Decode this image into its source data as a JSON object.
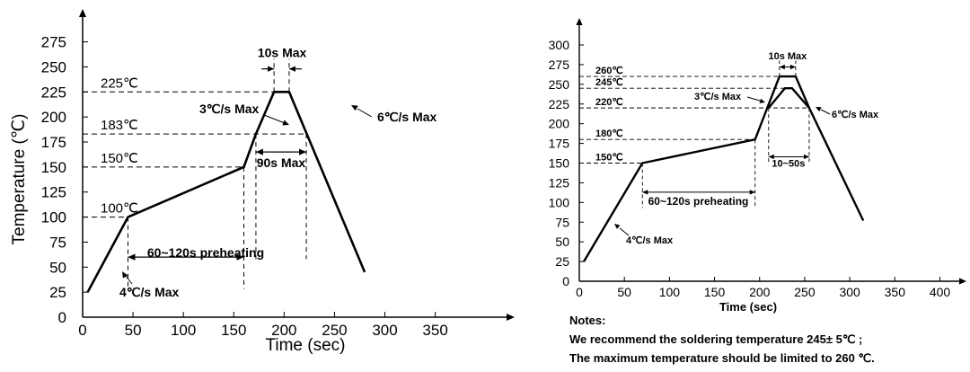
{
  "chart_data": [
    {
      "type": "line",
      "xlabel": "Time (sec)",
      "ylabel": "Temperature (℃)",
      "xlim": [
        0,
        370
      ],
      "ylim": [
        0,
        290
      ],
      "xticks": [
        "0",
        "50",
        "100",
        "150",
        "200",
        "250",
        "300",
        "350"
      ],
      "yticks": [
        "0",
        "25",
        "50",
        "75",
        "100",
        "125",
        "150",
        "175",
        "200",
        "225",
        "250",
        "275"
      ],
      "series": [
        {
          "x": [
            5,
            45,
            160,
            172,
            190,
            205,
            280
          ],
          "y": [
            25,
            100,
            150,
            183,
            225,
            225,
            45
          ]
        }
      ],
      "ref_lines": [
        {
          "y": 225,
          "label": "225℃"
        },
        {
          "y": 183,
          "label": "183℃"
        },
        {
          "y": 150,
          "label": "150℃"
        },
        {
          "y": 100,
          "label": "100℃"
        }
      ],
      "annotations": {
        "dwell": "10s Max",
        "ramp_up": "3℃/s Max",
        "cool_down": "6℃/s Max",
        "above_183": "90s Max",
        "preheat": "60~120s preheating",
        "initial_ramp": "4℃/s Max"
      }
    },
    {
      "type": "line",
      "xlabel": "Time (sec)",
      "ylabel": "",
      "xlim": [
        0,
        430
      ],
      "ylim": [
        0,
        315
      ],
      "xticks": [
        "0",
        "50",
        "100",
        "150",
        "200",
        "250",
        "300",
        "350",
        "400"
      ],
      "yticks": [
        "0",
        "25",
        "50",
        "75",
        "100",
        "125",
        "150",
        "175",
        "200",
        "225",
        "250",
        "275",
        "300"
      ],
      "series": [
        {
          "x": [
            5,
            70,
            195,
            222,
            230,
            240,
            255,
            315
          ],
          "y": [
            25,
            150,
            180,
            260,
            260,
            260,
            220,
            77
          ]
        },
        {
          "x": [
            210,
            228,
            236,
            255
          ],
          "y": [
            220,
            245,
            245,
            220
          ]
        }
      ],
      "ref_lines": [
        {
          "y": 260,
          "label": "260℃"
        },
        {
          "y": 245,
          "label": "245℃"
        },
        {
          "y": 220,
          "label": "220℃"
        },
        {
          "y": 180,
          "label": "180℃"
        },
        {
          "y": 150,
          "label": "150℃"
        }
      ],
      "annotations": {
        "dwell": "10s Max",
        "ramp_up": "3℃/s Max",
        "cool_down": "6℃/s Max",
        "above_220": "10~50s",
        "preheat": "60~120s preheating",
        "initial_ramp": "4℃/s Max"
      }
    }
  ],
  "notes": {
    "heading": "Notes:",
    "line1": "We recommend the soldering temperature 245± 5℃ ;",
    "line2": "The maximum temperature should be limited to 260 ℃."
  }
}
